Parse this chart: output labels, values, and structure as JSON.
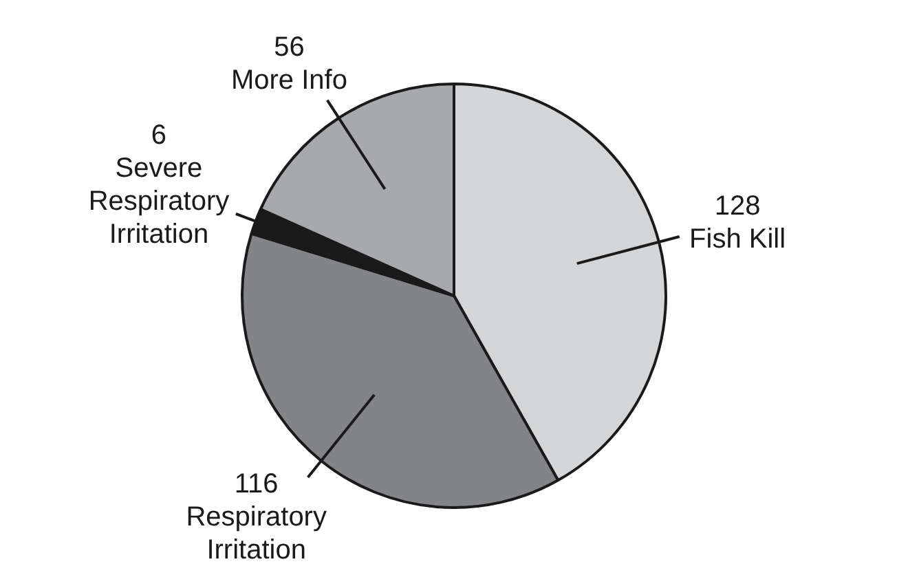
{
  "chart_data": {
    "type": "pie",
    "categories": [
      "Fish Kill",
      "Respiratory Irritation",
      "Severe Respiratory Irritation",
      "More Info"
    ],
    "values": [
      128,
      116,
      6,
      56
    ],
    "colors": [
      "#d4d5d7",
      "#838487",
      "#1a1a1a",
      "#a8a9ac"
    ],
    "data_labels": true,
    "legend": false
  }
}
